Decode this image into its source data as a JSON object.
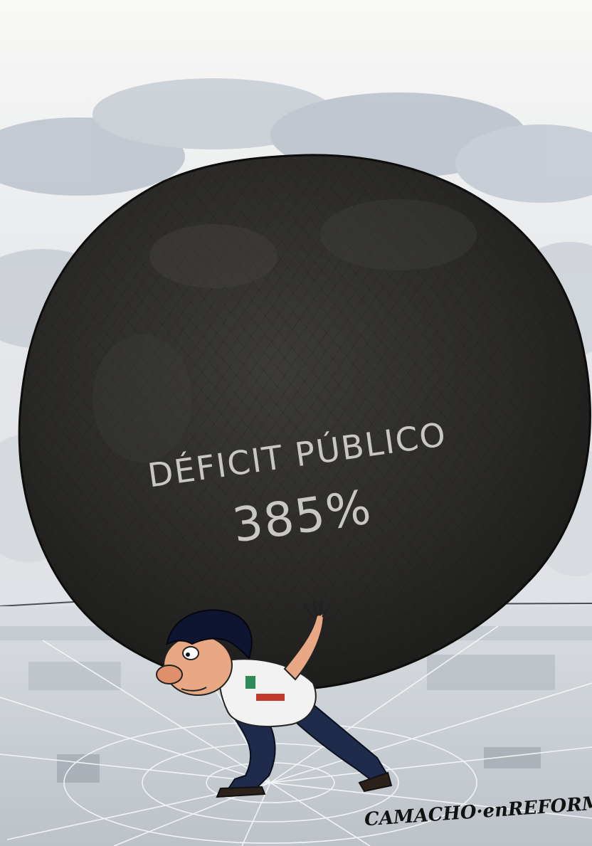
{
  "cartoon": {
    "boulder_label": "DÉFICIT PÚBLICO",
    "boulder_value": "385%",
    "signature": "CAMACHO·enREFORMA"
  },
  "colors": {
    "sky_top": "#f7f7f5",
    "sky_clouds": "#b9c1cb",
    "boulder": "#2a2a28",
    "boulder_text": "#c9c7c2",
    "ground": "#c7ccd1",
    "shirt": "#f2f2f2",
    "pants": "#1f2b4a",
    "hair": "#0f1430",
    "skin": "#e7a883"
  }
}
